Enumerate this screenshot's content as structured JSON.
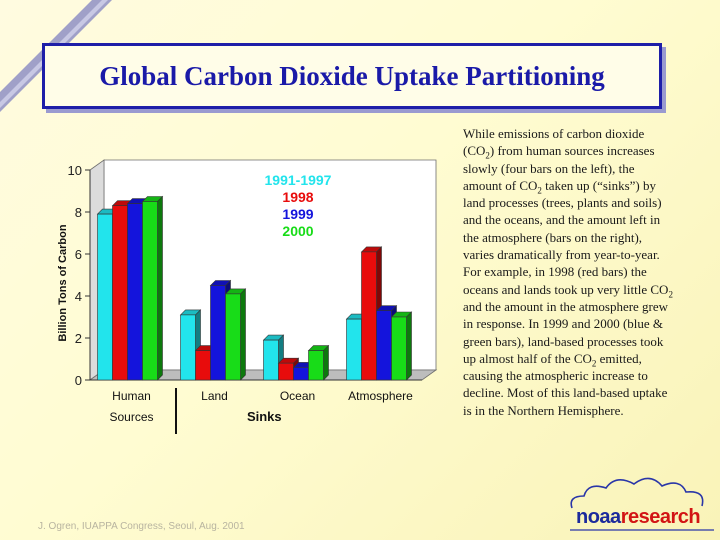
{
  "slide": {
    "title": "Global Carbon Dioxide Uptake Partitioning",
    "description_segments": [
      "While emissions of carbon dioxide (CO",
      ") from human sources increases slowly (four bars on the left), the amount of CO",
      " taken up (“sinks”) by land processes (trees, plants and soils) and the oceans, and the amount left in the atmosphere (bars on the right), varies dramatically from year-to-year.  For example, in 1998 (red bars) the oceans and lands took up very little CO",
      " and the amount in the atmosphere grew in response.  In 1999 and 2000 (blue & green bars), land-based processes took up almost half of the CO",
      " emitted, causing the atmospheric increase to decline.  Most of this land-based uptake is in the Northern Hemisphere."
    ],
    "subscript": "2",
    "footer": "J. Ogren, IUAPPA Congress, Seoul, Aug. 2001",
    "logo": {
      "part1": "noaa",
      "part2": "research"
    }
  },
  "chart_data": {
    "type": "bar",
    "categories": [
      "Human",
      "Land",
      "Ocean",
      "Atmosphere"
    ],
    "series": [
      {
        "name": "1991-1997",
        "color": "#22e4ec",
        "values": [
          7.9,
          3.1,
          1.9,
          2.9
        ]
      },
      {
        "name": "1998",
        "color": "#e80c0c",
        "values": [
          8.3,
          1.4,
          0.8,
          6.1
        ]
      },
      {
        "name": "1999",
        "color": "#1414dc",
        "values": [
          8.4,
          4.5,
          0.6,
          3.3
        ]
      },
      {
        "name": "2000",
        "color": "#18dc18",
        "values": [
          8.5,
          4.1,
          1.4,
          3.0
        ]
      }
    ],
    "ylabel": "Billion Tons of Carbon",
    "ylim": [
      0,
      10
    ],
    "yticks": [
      0,
      2,
      4,
      6,
      8,
      10
    ],
    "group_labels": {
      "sources": "Sources",
      "sinks": "Sinks"
    },
    "grid": false,
    "legend_position": "top-center"
  }
}
